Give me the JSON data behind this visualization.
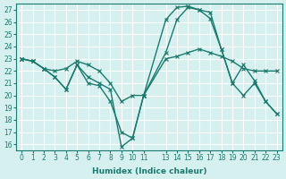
{
  "xlabel": "Humidex (Indice chaleur)",
  "bg_color": "#d6f0f0",
  "grid_color": "#ffffff",
  "line_color": "#1a7a6e",
  "x_tick_positions": [
    0,
    1,
    2,
    3,
    4,
    5,
    6,
    7,
    8,
    9,
    10,
    11,
    13,
    14,
    15,
    16,
    17,
    18,
    19,
    20,
    21,
    22,
    23
  ],
  "x_tick_labels": [
    "0",
    "1",
    "2",
    "3",
    "4",
    "5",
    "6",
    "7",
    "8",
    "9",
    "10",
    "11",
    "13",
    "14",
    "15",
    "16",
    "17",
    "18",
    "19",
    "20",
    "21",
    "22",
    "23"
  ],
  "ylim": [
    15.5,
    27.5
  ],
  "xlim": [
    -0.5,
    23.5
  ],
  "yticks": [
    16,
    17,
    18,
    19,
    20,
    21,
    22,
    23,
    24,
    25,
    26,
    27
  ],
  "lines": [
    {
      "x": [
        0,
        1,
        2,
        3,
        4,
        5,
        6,
        7,
        8,
        9,
        10,
        11,
        13,
        14,
        15,
        16,
        17,
        18,
        19,
        20,
        21,
        22,
        23
      ],
      "y": [
        23,
        22.8,
        22.2,
        22.0,
        22.2,
        22.8,
        22.5,
        22.0,
        21.0,
        19.5,
        20.0,
        20.0,
        23.0,
        23.2,
        23.5,
        23.8,
        23.5,
        23.2,
        22.8,
        22.2,
        22.0,
        22.0,
        22.0
      ]
    },
    {
      "x": [
        0,
        1,
        2,
        3,
        4,
        5,
        6,
        7,
        8,
        9,
        10,
        11,
        13,
        14,
        15,
        16,
        17,
        18,
        19,
        20,
        21,
        22,
        23
      ],
      "y": [
        23,
        22.8,
        22.2,
        21.5,
        20.5,
        22.5,
        21.0,
        20.8,
        19.5,
        17.0,
        16.5,
        20.0,
        26.2,
        27.2,
        27.3,
        27.0,
        26.8,
        23.8,
        21.0,
        22.5,
        21.2,
        19.5,
        18.5
      ]
    },
    {
      "x": [
        0,
        1,
        2,
        3,
        4,
        5,
        6,
        7,
        8,
        9,
        10,
        11,
        13,
        14,
        15,
        16,
        17,
        18,
        19,
        20,
        21,
        22,
        23
      ],
      "y": [
        23,
        22.8,
        22.2,
        21.5,
        20.5,
        22.5,
        21.5,
        21.0,
        20.5,
        15.8,
        16.5,
        20.0,
        23.5,
        26.2,
        27.2,
        27.0,
        26.3,
        23.8,
        21.0,
        20.0,
        21.0,
        19.5,
        18.5
      ]
    }
  ]
}
